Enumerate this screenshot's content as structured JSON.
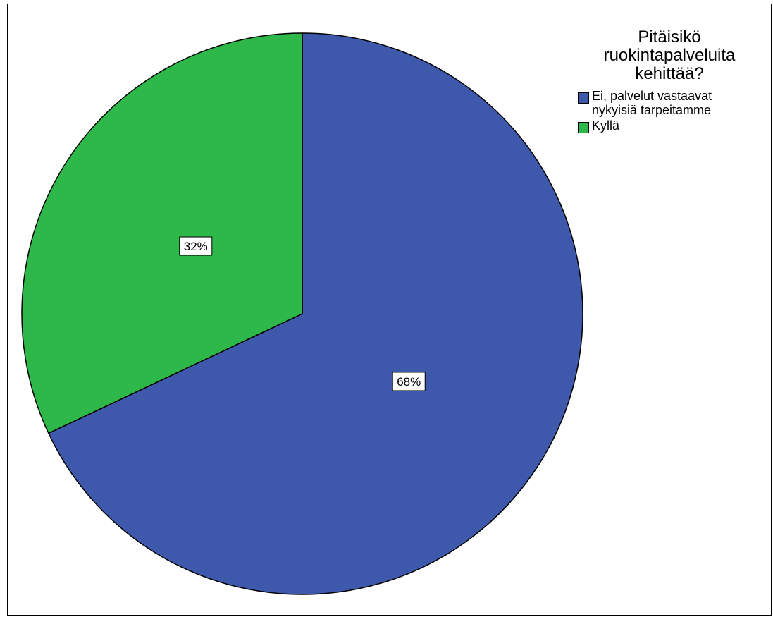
{
  "chart_data": {
    "type": "pie",
    "title_lines": [
      "Pitäisikö",
      "ruokintapalveluita",
      "kehittää?"
    ],
    "legend_placement": "top-right",
    "start_angle_deg": 0,
    "direction": "clockwise",
    "slices": [
      {
        "label_lines": [
          "Ei, palvelut vastaavat",
          "nykyisiä tarpeitamme"
        ],
        "value": 68,
        "value_label": "68%",
        "color": "#3E58AC"
      },
      {
        "label_lines": [
          "Kyllä"
        ],
        "value": 32,
        "value_label": "32%",
        "color": "#2EB84A"
      }
    ]
  }
}
